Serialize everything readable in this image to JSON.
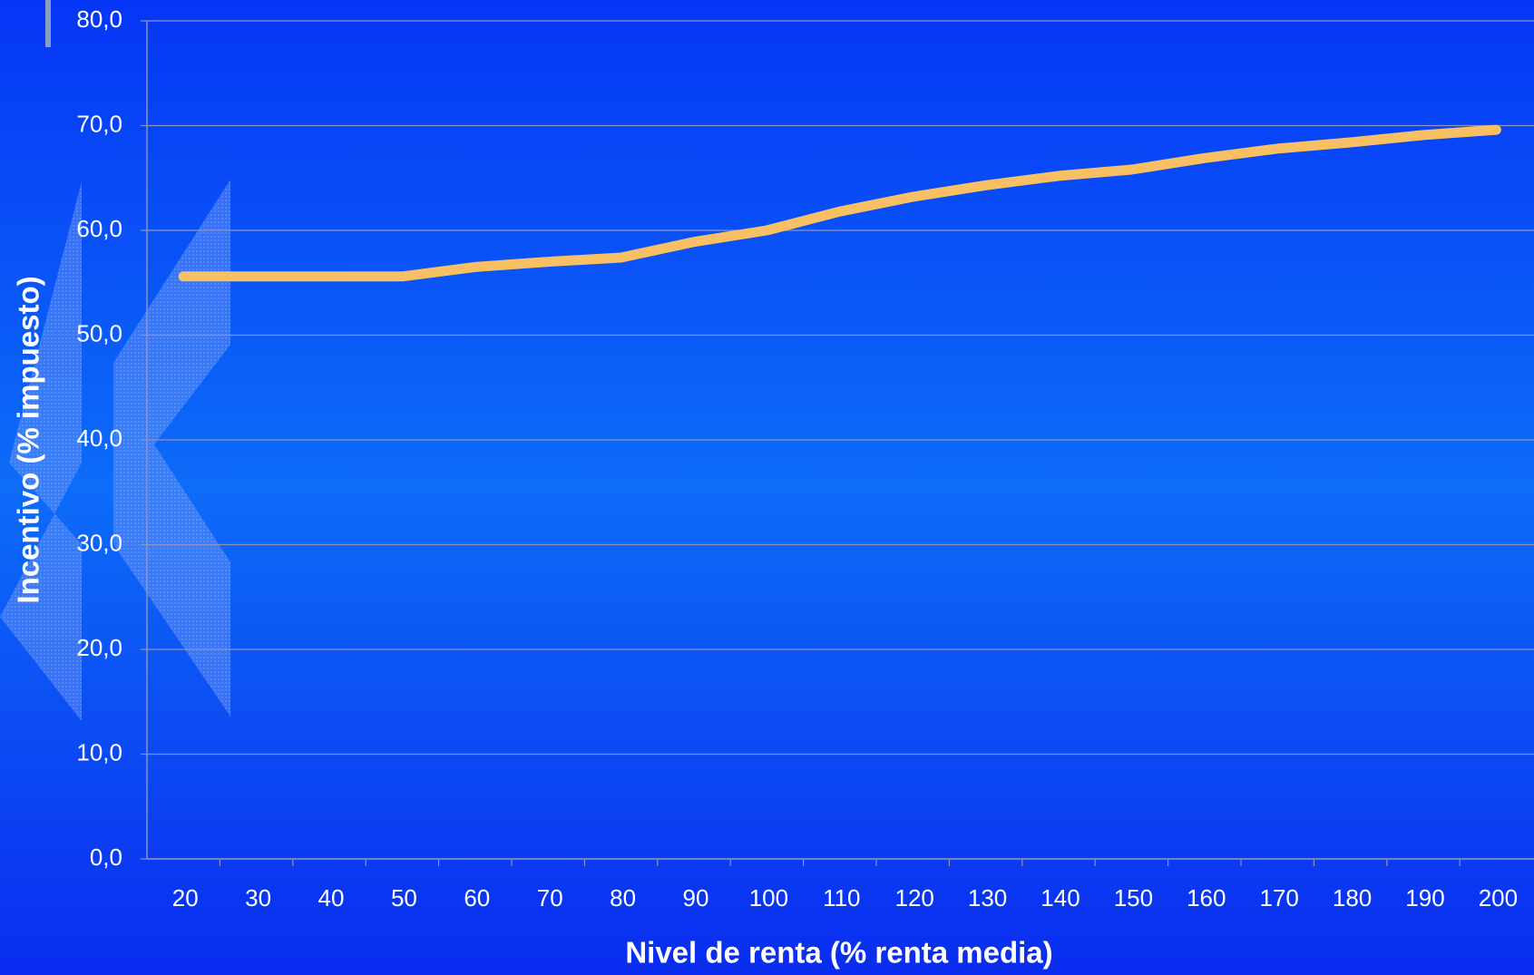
{
  "chart_data": {
    "type": "line",
    "xlabel": "Nivel de renta (% renta media)",
    "ylabel": "Incentivo (% impuesto)",
    "categories": [
      "20",
      "30",
      "40",
      "50",
      "60",
      "70",
      "80",
      "90",
      "100",
      "110",
      "120",
      "130",
      "140",
      "150",
      "160",
      "170",
      "180",
      "190",
      "200"
    ],
    "series": [
      {
        "name": "Incentivo",
        "color": "#f9c063",
        "values": [
          55.6,
          55.6,
          55.6,
          55.6,
          56.5,
          57.0,
          57.4,
          58.9,
          60.0,
          61.8,
          63.2,
          64.3,
          65.2,
          65.8,
          66.9,
          67.8,
          68.4,
          69.1,
          69.6
        ]
      }
    ],
    "ylim": [
      0,
      80
    ],
    "yticks": [
      {
        "value": 0,
        "label": "0,0"
      },
      {
        "value": 10,
        "label": "10,0"
      },
      {
        "value": 20,
        "label": "20,0"
      },
      {
        "value": 30,
        "label": "30,0"
      },
      {
        "value": 40,
        "label": "40,0"
      },
      {
        "value": 50,
        "label": "50,0"
      },
      {
        "value": 60,
        "label": "60,0"
      },
      {
        "value": 70,
        "label": "70,0"
      },
      {
        "value": 80,
        "label": "80,0"
      }
    ],
    "grid": true
  }
}
